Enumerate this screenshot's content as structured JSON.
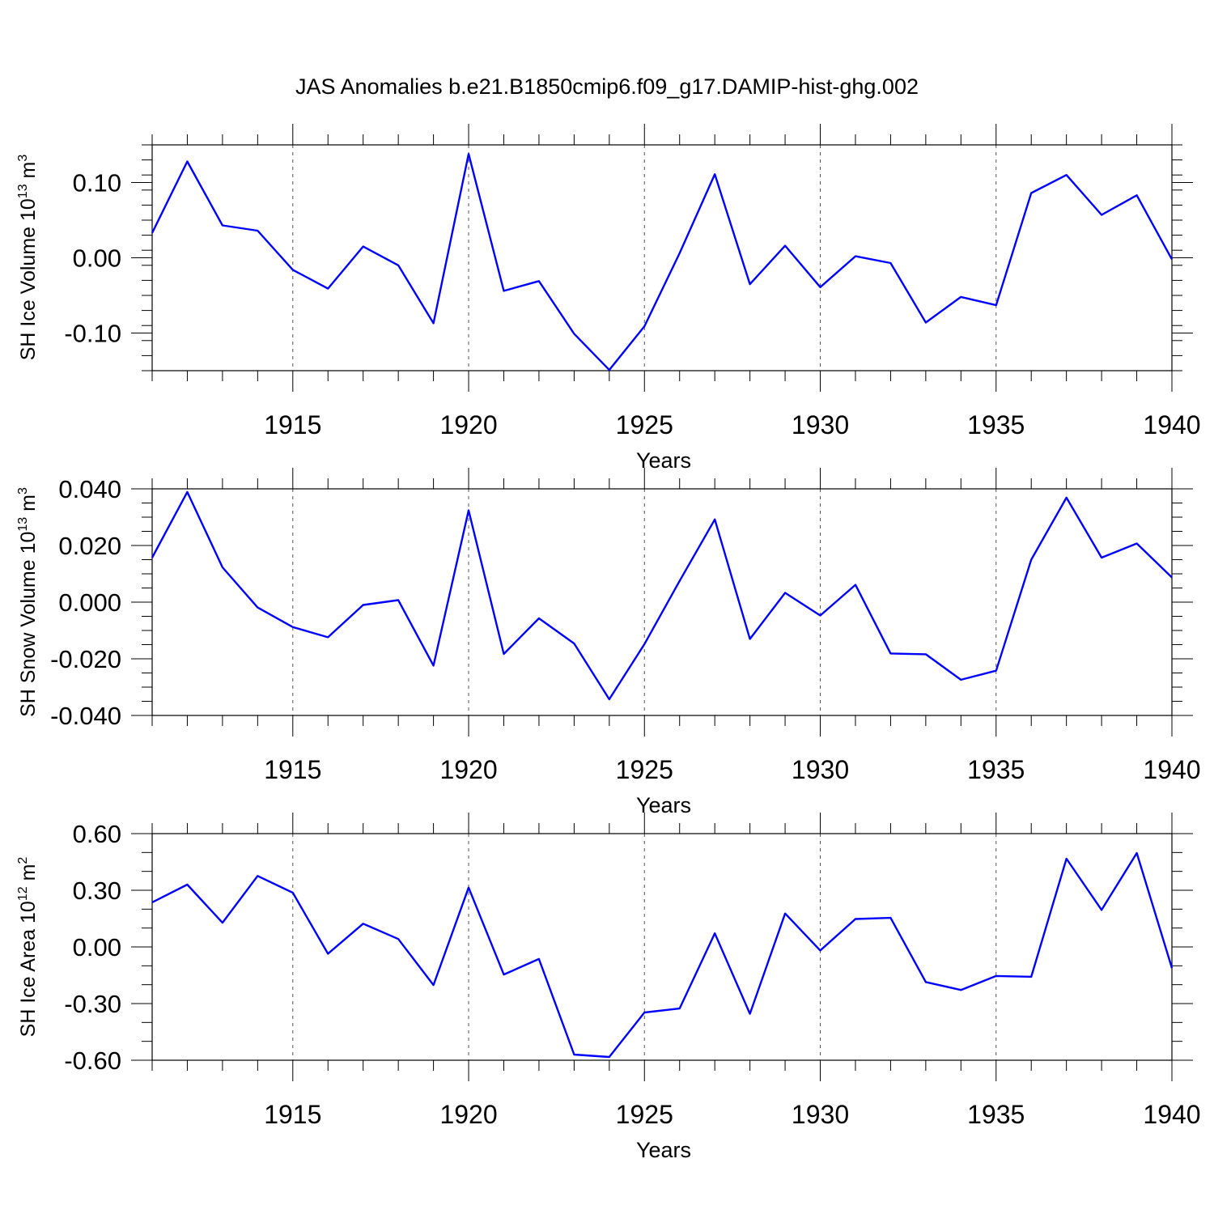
{
  "figure": {
    "title": "JAS Anomalies b.e21.B1850cmip6.f09_g17.DAMIP-hist-ghg.002"
  },
  "chart_data": [
    {
      "type": "line",
      "title": "",
      "xlabel": "Years",
      "ylabel": {
        "text": "SH Ice Volume 10",
        "exponent": "13",
        "unit": " m",
        "unit_exponent": "3"
      },
      "xlim": [
        1911,
        1940
      ],
      "ylim": [
        -0.15,
        0.15
      ],
      "x_ticks": [
        1915,
        1920,
        1925,
        1930,
        1935,
        1940
      ],
      "x_tick_labels": [
        "1915",
        "1920",
        "1925",
        "1930",
        "1935",
        "1940"
      ],
      "y_ticks": [
        0.1,
        0.0,
        -0.1
      ],
      "y_tick_labels": [
        "0.10",
        "0.00",
        "-0.10"
      ],
      "grid": "vertical-dashed",
      "line_color": "#0000ff",
      "series": [
        {
          "x": [
            1911,
            1912,
            1913,
            1914,
            1915,
            1916,
            1917,
            1918,
            1919,
            1920,
            1921,
            1922,
            1923,
            1924,
            1925,
            1926,
            1927,
            1928,
            1929,
            1930,
            1931,
            1932,
            1933,
            1934,
            1935,
            1936,
            1937,
            1938,
            1939,
            1940
          ],
          "values": [
            0.033,
            0.128,
            0.043,
            0.036,
            -0.016,
            -0.041,
            0.015,
            -0.01,
            -0.087,
            0.138,
            -0.044,
            -0.031,
            -0.101,
            -0.149,
            -0.091,
            0.006,
            0.111,
            -0.035,
            0.016,
            -0.039,
            0.002,
            -0.007,
            -0.086,
            -0.052,
            -0.063,
            0.086,
            0.11,
            0.057,
            0.083,
            -0.002
          ]
        }
      ]
    },
    {
      "type": "line",
      "title": "",
      "xlabel": "Years",
      "ylabel": {
        "text": "SH Snow Volume 10",
        "exponent": "13",
        "unit": " m",
        "unit_exponent": "3"
      },
      "xlim": [
        1911,
        1940
      ],
      "ylim": [
        -0.04,
        0.04
      ],
      "x_ticks": [
        1915,
        1920,
        1925,
        1930,
        1935,
        1940
      ],
      "x_tick_labels": [
        "1915",
        "1920",
        "1925",
        "1930",
        "1935",
        "1940"
      ],
      "y_ticks": [
        0.04,
        0.02,
        0.0,
        -0.02,
        -0.04
      ],
      "y_tick_labels": [
        "0.040",
        "0.020",
        "0.000",
        "-0.020",
        "-0.040"
      ],
      "grid": "vertical-dashed",
      "line_color": "#0000ff",
      "series": [
        {
          "x": [
            1911,
            1912,
            1913,
            1914,
            1915,
            1916,
            1917,
            1918,
            1919,
            1920,
            1921,
            1922,
            1923,
            1924,
            1925,
            1926,
            1927,
            1928,
            1929,
            1930,
            1931,
            1932,
            1933,
            1934,
            1935,
            1936,
            1937,
            1938,
            1939,
            1940
          ],
          "values": [
            0.0157,
            0.0389,
            0.0123,
            -0.0019,
            -0.0088,
            -0.0124,
            -0.001,
            0.0007,
            -0.0224,
            0.0324,
            -0.0183,
            -0.0057,
            -0.0146,
            -0.0343,
            -0.0148,
            0.0075,
            0.0292,
            -0.013,
            0.0033,
            -0.0047,
            0.0061,
            -0.0181,
            -0.0184,
            -0.0274,
            -0.0242,
            0.015,
            0.0369,
            0.0157,
            0.0207,
            0.0087
          ]
        }
      ]
    },
    {
      "type": "line",
      "title": "",
      "xlabel": "Years",
      "ylabel": {
        "text": "SH Ice Area 10",
        "exponent": "12",
        "unit": " m",
        "unit_exponent": "2"
      },
      "xlim": [
        1911,
        1940
      ],
      "ylim": [
        -0.6,
        0.6
      ],
      "x_ticks": [
        1915,
        1920,
        1925,
        1930,
        1935,
        1940
      ],
      "x_tick_labels": [
        "1915",
        "1920",
        "1925",
        "1930",
        "1935",
        "1940"
      ],
      "y_ticks": [
        0.6,
        0.3,
        0.0,
        -0.3,
        -0.6
      ],
      "y_tick_labels": [
        "0.60",
        "0.30",
        "0.00",
        "-0.30",
        "-0.60"
      ],
      "grid": "vertical-dashed",
      "line_color": "#0000ff",
      "series": [
        {
          "x": [
            1911,
            1912,
            1913,
            1914,
            1915,
            1916,
            1917,
            1918,
            1919,
            1920,
            1921,
            1922,
            1923,
            1924,
            1925,
            1926,
            1927,
            1928,
            1929,
            1930,
            1931,
            1932,
            1933,
            1934,
            1935,
            1936,
            1937,
            1938,
            1939,
            1940
          ],
          "values": [
            0.236,
            0.33,
            0.128,
            0.376,
            0.287,
            -0.036,
            0.123,
            0.042,
            -0.202,
            0.314,
            -0.146,
            -0.064,
            -0.57,
            -0.583,
            -0.347,
            -0.326,
            0.072,
            -0.354,
            0.177,
            -0.019,
            0.148,
            0.154,
            -0.186,
            -0.228,
            -0.154,
            -0.158,
            0.467,
            0.196,
            0.497,
            -0.112
          ]
        }
      ]
    }
  ]
}
